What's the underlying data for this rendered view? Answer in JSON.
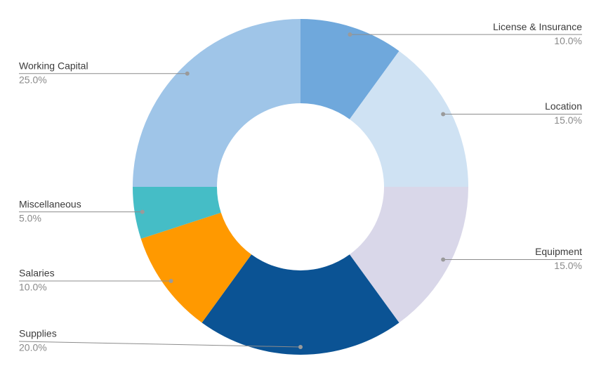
{
  "chart_data": {
    "type": "donut",
    "categories": [
      "License & Insurance",
      "Location",
      "Equipment",
      "Supplies",
      "Salaries",
      "Miscellaneous",
      "Working Capital"
    ],
    "values": [
      10,
      15,
      15,
      20,
      10,
      5,
      25
    ],
    "value_labels": [
      "10.0%",
      "15.0%",
      "15.0%",
      "20.0%",
      "10.0%",
      "5.0%",
      "25.0%"
    ],
    "colors": [
      "#6fa8dc",
      "#cfe2f3",
      "#d9d7e9",
      "#0b5394",
      "#ff9900",
      "#45bdc6",
      "#9fc5e8"
    ]
  }
}
